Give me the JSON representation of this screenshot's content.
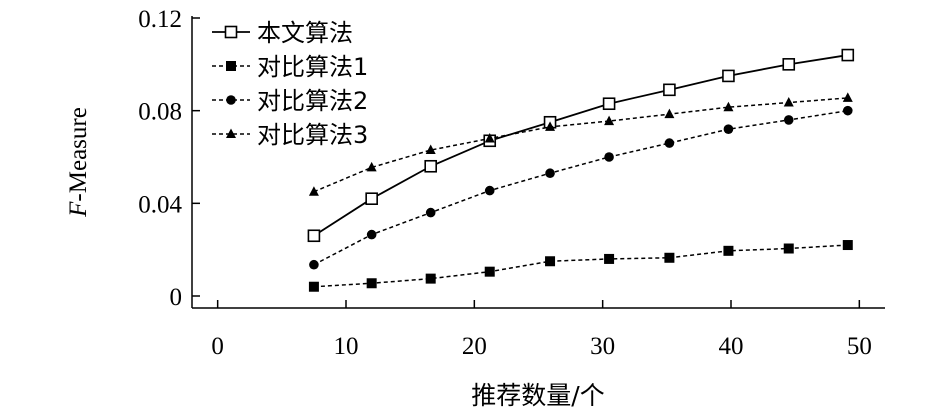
{
  "chart_data": {
    "type": "line",
    "title": "",
    "xlabel": "推荐数量/个",
    "ylabel": "F-Measure",
    "ylabel_italic_part": "F",
    "ylabel_rest": "-Measure",
    "xlim": [
      -2,
      52
    ],
    "ylim": [
      0,
      0.12
    ],
    "x_ticks": [
      0,
      10,
      20,
      30,
      40,
      50
    ],
    "x_tick_labels": [
      "0",
      "10",
      "20",
      "30",
      "40",
      "50"
    ],
    "y_ticks": [
      0,
      0.04,
      0.08,
      0.12
    ],
    "y_tick_labels": [
      "0",
      "0.04",
      "0.08",
      "0.12"
    ],
    "grid": false,
    "legend_position": "top-left",
    "x": [
      7.5,
      12,
      16.6,
      21.2,
      25.9,
      30.5,
      35.2,
      39.8,
      44.5,
      49.1
    ],
    "series": [
      {
        "name": "本文算法",
        "marker": "open-square",
        "line": "solid",
        "values": [
          0.026,
          0.042,
          0.056,
          0.067,
          0.075,
          0.083,
          0.089,
          0.095,
          0.1,
          0.104
        ]
      },
      {
        "name": "对比算法1",
        "marker": "filled-square",
        "line": "dashed",
        "values": [
          0.004,
          0.0055,
          0.0075,
          0.0105,
          0.015,
          0.016,
          0.0165,
          0.0195,
          0.0205,
          0.022
        ]
      },
      {
        "name": "对比算法2",
        "marker": "filled-circle",
        "line": "dashed",
        "values": [
          0.0135,
          0.0265,
          0.036,
          0.0455,
          0.053,
          0.06,
          0.066,
          0.072,
          0.076,
          0.08
        ]
      },
      {
        "name": "对比算法3",
        "marker": "filled-triangle",
        "line": "dashed",
        "values": [
          0.045,
          0.0555,
          0.063,
          0.068,
          0.073,
          0.0755,
          0.0785,
          0.0815,
          0.0835,
          0.0855
        ]
      }
    ]
  }
}
